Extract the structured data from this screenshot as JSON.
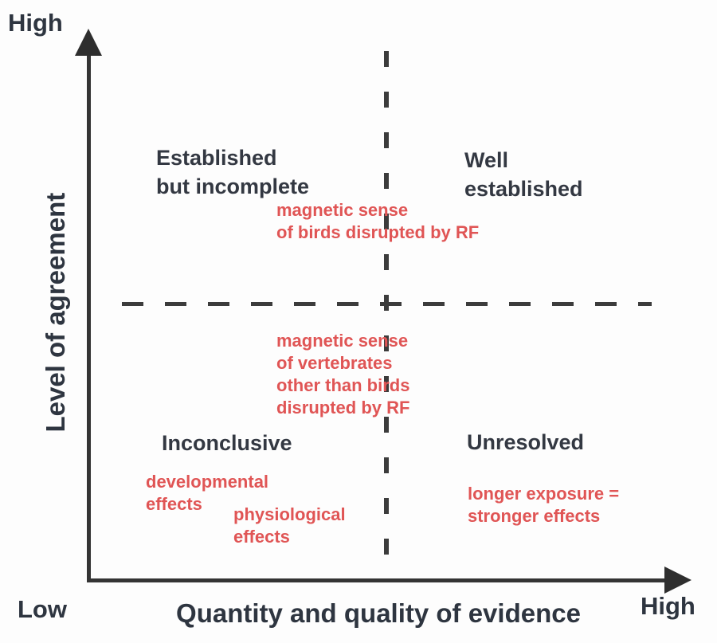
{
  "figure": {
    "y_axis": {
      "label": "Level of agreement",
      "top_label": "High",
      "bottom_label": "Low"
    },
    "x_axis": {
      "label": "Quantity and quality of evidence",
      "right_label": "High"
    },
    "quadrants": {
      "top_left": "Established\nbut incomplete",
      "top_right": "Well\nestablished",
      "bottom_left": "Inconclusive",
      "bottom_right": "Unresolved"
    },
    "items": {
      "birds": "magnetic sense\nof birds disrupted by RF",
      "vertebrates": "magnetic sense\nof vertebrates\nother than birds\ndisrupted by RF",
      "developmental": "developmental\neffects",
      "physiological": "physiological\neffects",
      "exposure": "longer exposure =\nstronger effects"
    },
    "colors": {
      "quadrant_label_text": "#333842",
      "item_text": "#e05555",
      "axis": "#343434"
    }
  }
}
